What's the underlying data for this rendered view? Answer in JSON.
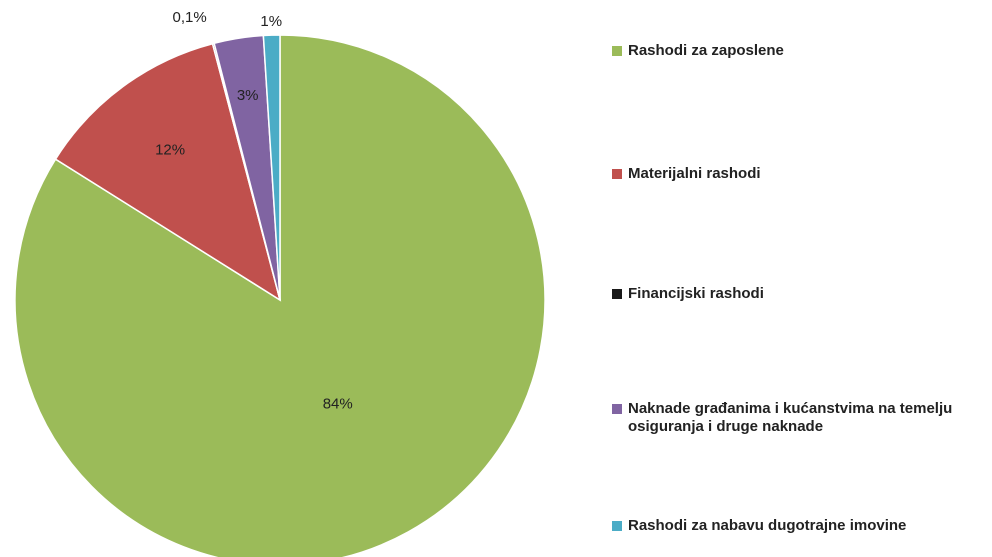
{
  "chart_data": {
    "type": "pie",
    "categories": [
      "Rashodi za zaposlene",
      "Materijalni rashodi",
      "Financijski rashodi",
      "Naknade građanima i kućanstvima na temelju osiguranja i druge naknade",
      "Rashodi za nabavu dugotrajne imovine"
    ],
    "values": [
      84,
      12,
      0.1,
      3,
      1
    ],
    "value_labels": [
      "84%",
      "12%",
      "0,1%",
      "3%",
      "1%"
    ],
    "colors": [
      "#9bbb59",
      "#c0504d",
      "#1a1a1a",
      "#8064a2",
      "#4bacc6"
    ],
    "legend": "right"
  }
}
